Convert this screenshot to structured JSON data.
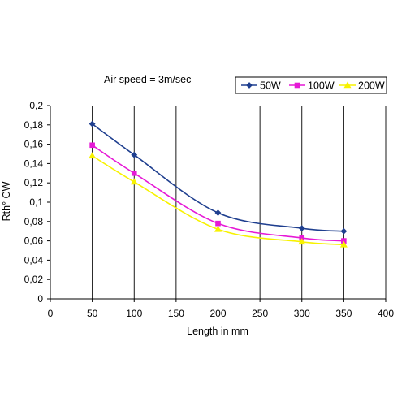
{
  "chart_data": {
    "type": "line",
    "annotation": "Air speed = 3m/sec",
    "xlabel": "Length in mm",
    "ylabel": "Rth° CW",
    "xlim": [
      0,
      400
    ],
    "ylim": [
      0,
      0.2
    ],
    "xticks": [
      "0",
      "50",
      "100",
      "150",
      "200",
      "250",
      "300",
      "350",
      "400"
    ],
    "yticks": [
      "0",
      "0,02",
      "0,04",
      "0,06",
      "0,08",
      "0,1",
      "0,12",
      "0,14",
      "0,16",
      "0,18",
      "0,2"
    ],
    "grid": "vertical",
    "legend": "top-right",
    "series": [
      {
        "name": "50W",
        "color": "#1f3f8f",
        "marker": "diamond",
        "x": [
          50,
          100,
          200,
          300,
          350
        ],
        "y": [
          0.181,
          0.149,
          0.089,
          0.073,
          0.07
        ]
      },
      {
        "name": "100W",
        "color": "#e619d6",
        "marker": "square",
        "x": [
          50,
          100,
          200,
          300,
          350
        ],
        "y": [
          0.159,
          0.13,
          0.078,
          0.063,
          0.06
        ]
      },
      {
        "name": "200W",
        "color": "#f7f200",
        "marker": "triangle",
        "x": [
          50,
          100,
          200,
          300,
          350
        ],
        "y": [
          0.148,
          0.121,
          0.072,
          0.059,
          0.056
        ]
      }
    ]
  }
}
